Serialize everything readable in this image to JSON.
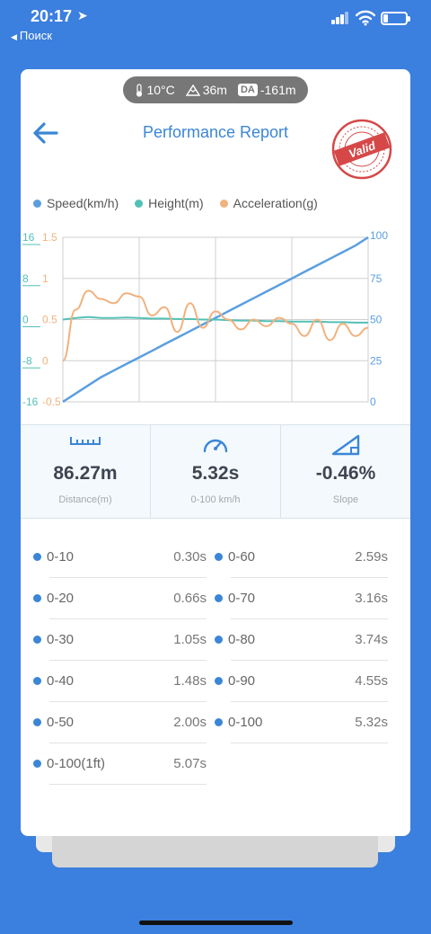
{
  "status": {
    "time": "20:17",
    "back_app": "Поиск"
  },
  "conditions": {
    "temp": "10°C",
    "altitude": "36m",
    "da_badge": "DA",
    "da_value": "-161m"
  },
  "header": {
    "title": "Performance Report",
    "stamp_text": "Valid"
  },
  "legend": [
    {
      "label": "Speed(km/h)",
      "color": "#5b9ee0"
    },
    {
      "label": "Height(m)",
      "color": "#53c0b6"
    },
    {
      "label": "Acceleration(g)",
      "color": "#f0b27f"
    }
  ],
  "chart_data": {
    "type": "line",
    "y_axes": {
      "height": {
        "ticks": [
          "16",
          "8",
          "0",
          "-8",
          "-16"
        ],
        "range": [
          -16,
          16
        ]
      },
      "acceleration": {
        "ticks": [
          "1.5",
          "1",
          "0.5",
          "0",
          "-0.5"
        ],
        "range": [
          -0.5,
          1.5
        ]
      },
      "speed": {
        "ticks": [
          "100",
          "75",
          "50",
          "25",
          "0"
        ],
        "range": [
          0,
          100
        ]
      }
    },
    "grid": true,
    "series": [
      {
        "name": "Speed(km/h)",
        "color": "#5b9ee0",
        "values": [
          0,
          5,
          10,
          15,
          19,
          23,
          27,
          31,
          35,
          39,
          43,
          47,
          51,
          55,
          59,
          63,
          67,
          71,
          75,
          79,
          83,
          87,
          91,
          95,
          100
        ]
      },
      {
        "name": "Height(m)",
        "color": "#53c0b6",
        "values": [
          0,
          0.3,
          0.5,
          0.3,
          0.3,
          0.4,
          0.3,
          0.2,
          0.2,
          0.1,
          0.1,
          0,
          0,
          -0.1,
          -0.2,
          -0.2,
          -0.3,
          -0.3,
          -0.4,
          -0.4,
          -0.4,
          -0.5,
          -0.5,
          -0.6,
          -0.6
        ]
      },
      {
        "name": "Acceleration(g)",
        "color": "#f0b27f",
        "values": [
          0.0,
          0.62,
          0.85,
          0.75,
          0.7,
          0.82,
          0.78,
          0.55,
          0.65,
          0.35,
          0.7,
          0.4,
          0.6,
          0.5,
          0.38,
          0.5,
          0.42,
          0.52,
          0.45,
          0.3,
          0.5,
          0.25,
          0.45,
          0.3,
          0.4
        ]
      }
    ]
  },
  "stats": [
    {
      "icon": "ruler-icon",
      "value": "86.27m",
      "label": "Distance(m)"
    },
    {
      "icon": "speedometer-icon",
      "value": "5.32s",
      "label": "0-100 km/h"
    },
    {
      "icon": "slope-icon",
      "value": "-0.46%",
      "label": "Slope"
    }
  ],
  "splits_left": [
    {
      "name": "0-10",
      "time": "0.30s"
    },
    {
      "name": "0-20",
      "time": "0.66s"
    },
    {
      "name": "0-30",
      "time": "1.05s"
    },
    {
      "name": "0-40",
      "time": "1.48s"
    },
    {
      "name": "0-50",
      "time": "2.00s"
    },
    {
      "name": "0-100(1ft)",
      "time": "5.07s"
    }
  ],
  "splits_right": [
    {
      "name": "0-60",
      "time": "2.59s"
    },
    {
      "name": "0-70",
      "time": "3.16s"
    },
    {
      "name": "0-80",
      "time": "3.74s"
    },
    {
      "name": "0-90",
      "time": "4.55s"
    },
    {
      "name": "0-100",
      "time": "5.32s"
    }
  ]
}
